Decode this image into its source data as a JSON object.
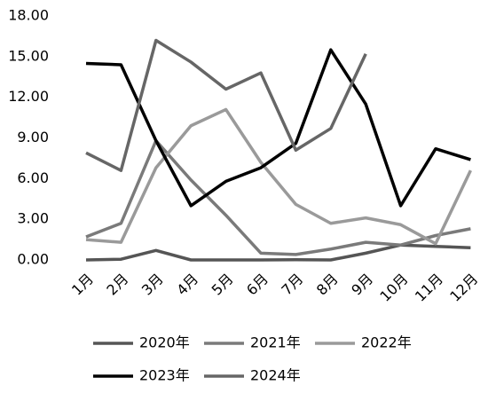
{
  "chart_data": {
    "type": "line",
    "categories": [
      "1月",
      "2月",
      "3月",
      "4月",
      "5月",
      "6月",
      "7月",
      "8月",
      "9月",
      "10月",
      "11月",
      "12月"
    ],
    "series": [
      {
        "name": "2020年",
        "color": "#555555",
        "values": [
          0,
          0.05,
          0.7,
          0,
          0,
          0,
          0.02,
          0,
          0.5,
          1.1,
          1.0,
          0.9
        ]
      },
      {
        "name": "2021年",
        "color": "#7a7a7a",
        "values": [
          1.7,
          2.7,
          8.8,
          5.9,
          3.3,
          0.5,
          0.4,
          0.8,
          1.3,
          1.1,
          1.8,
          2.3
        ]
      },
      {
        "name": "2022年",
        "color": "#9a9a9a",
        "values": [
          1.5,
          1.3,
          6.8,
          9.9,
          11.1,
          7.2,
          4.1,
          2.7,
          3.1,
          2.6,
          1.2,
          6.6
        ]
      },
      {
        "name": "2023年",
        "color": "#000000",
        "values": [
          14.5,
          14.4,
          8.8,
          4.0,
          5.8,
          6.8,
          8.6,
          15.5,
          11.5,
          4.0,
          8.2,
          7.4
        ]
      },
      {
        "name": "2024年",
        "color": "#666666",
        "values": [
          7.9,
          6.6,
          16.2,
          14.6,
          12.6,
          13.8,
          8.1,
          9.7,
          15.2,
          null,
          null,
          null
        ]
      }
    ],
    "ylim": [
      0,
      18
    ],
    "yticks": [
      {
        "value": 0,
        "label": "0.00"
      },
      {
        "value": 3,
        "label": "3.00"
      },
      {
        "value": 6,
        "label": "6.00"
      },
      {
        "value": 9,
        "label": "9.00"
      },
      {
        "value": 12,
        "label": "12.00"
      },
      {
        "value": 15,
        "label": "15.00"
      },
      {
        "value": 18,
        "label": "18.00"
      }
    ],
    "grid": false
  }
}
